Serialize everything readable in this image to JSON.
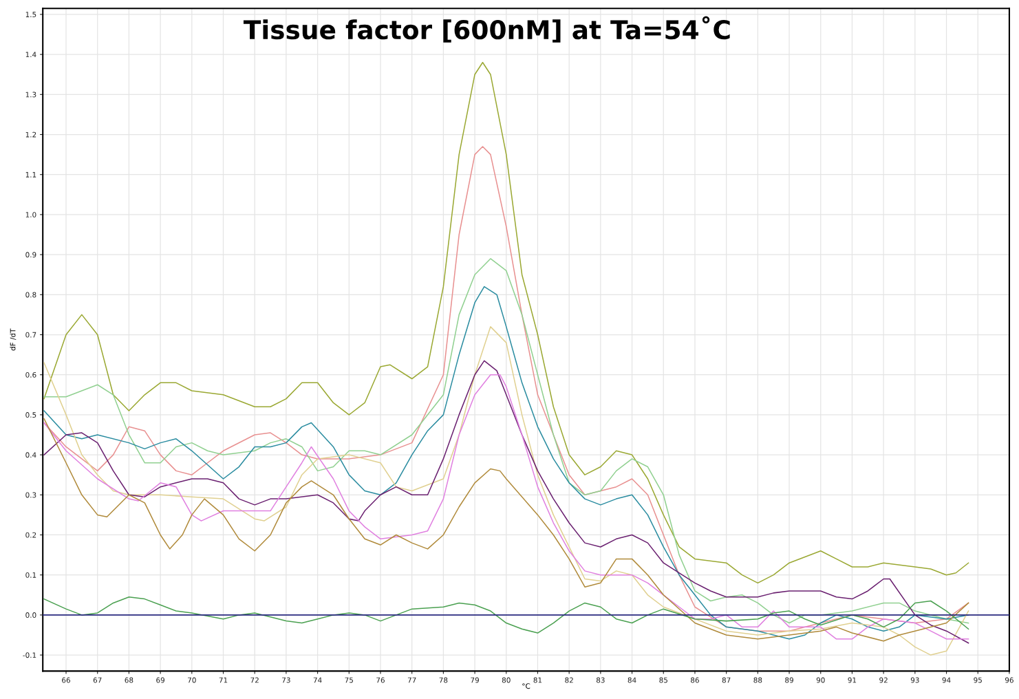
{
  "chart_data": {
    "type": "line",
    "title": "Tissue factor [600nM] at Ta=54˚C",
    "xlabel": "°C",
    "ylabel": "dF /dT",
    "xlim": [
      65.26,
      96
    ],
    "xticks": [
      66,
      67,
      68,
      69,
      70,
      71,
      72,
      73,
      74,
      75,
      76,
      77,
      78,
      79,
      80,
      81,
      82,
      83,
      84,
      85,
      86,
      87,
      88,
      89,
      90,
      91,
      92,
      93,
      94,
      95,
      96
    ],
    "ylim": [
      -0.14,
      1.515
    ],
    "yticks": [
      -0.1,
      {
        "value": 0,
        "label": "0.0"
      },
      0.1,
      0.2,
      0.3,
      0.4,
      0.5,
      0.6,
      0.7,
      0.8,
      0.9,
      {
        "value": 1,
        "label": "1.0"
      },
      1.1,
      1.2,
      1.3,
      1.4,
      1.5
    ],
    "grid": true,
    "marker": "none",
    "line_style": "solid",
    "ref_lines": [
      {
        "axis": "y",
        "value": 0,
        "color": "#2a2a80"
      }
    ],
    "series": [
      {
        "color": "#9aa832",
        "x": [
          65.3,
          66,
          66.5,
          67,
          67.5,
          68,
          68.5,
          69,
          69.5,
          70,
          71,
          72,
          72.5,
          73,
          73.5,
          74,
          74.5,
          75,
          75.5,
          76,
          76.3,
          77,
          77.5,
          78,
          78.5,
          79,
          79.25,
          79.5,
          80,
          80.5,
          81,
          81.5,
          82,
          82.5,
          83,
          83.5,
          84,
          84.5,
          85,
          85.5,
          86,
          87,
          87.5,
          88,
          88.5,
          89,
          90,
          90.5,
          91,
          91.5,
          92,
          93,
          93.5,
          94,
          94.3,
          94.7
        ],
        "values": [
          0.54,
          0.7,
          0.75,
          0.7,
          0.55,
          0.51,
          0.55,
          0.58,
          0.58,
          0.56,
          0.55,
          0.52,
          0.52,
          0.54,
          0.58,
          0.58,
          0.53,
          0.5,
          0.53,
          0.62,
          0.625,
          0.59,
          0.62,
          0.82,
          1.15,
          1.35,
          1.38,
          1.35,
          1.15,
          0.85,
          0.7,
          0.52,
          0.4,
          0.35,
          0.37,
          0.41,
          0.4,
          0.34,
          0.25,
          0.17,
          0.14,
          0.13,
          0.1,
          0.08,
          0.1,
          0.13,
          0.16,
          0.14,
          0.12,
          0.12,
          0.13,
          0.12,
          0.115,
          0.1,
          0.105,
          0.13
        ]
      },
      {
        "color": "#e89090",
        "x": [
          65.3,
          66,
          67,
          67.5,
          68,
          68.5,
          69,
          69.5,
          70,
          70.5,
          71,
          72,
          72.5,
          73,
          73.5,
          74,
          75,
          76,
          77,
          78,
          78.5,
          79,
          79.25,
          79.5,
          80,
          80.5,
          81,
          82,
          82.5,
          83,
          83.5,
          84,
          84.5,
          85,
          85.5,
          86,
          87,
          88,
          89,
          90,
          91,
          92,
          93,
          94,
          94.7
        ],
        "values": [
          0.48,
          0.42,
          0.36,
          0.4,
          0.47,
          0.46,
          0.4,
          0.36,
          0.35,
          0.38,
          0.41,
          0.45,
          0.455,
          0.43,
          0.4,
          0.39,
          0.39,
          0.4,
          0.43,
          0.6,
          0.95,
          1.15,
          1.17,
          1.15,
          0.97,
          0.75,
          0.55,
          0.35,
          0.3,
          0.31,
          0.32,
          0.34,
          0.3,
          0.2,
          0.1,
          0.02,
          -0.03,
          -0.04,
          -0.04,
          -0.02,
          0.0,
          -0.01,
          -0.02,
          -0.01,
          0.03
        ]
      },
      {
        "color": "#90d090",
        "x": [
          65.3,
          66,
          66.5,
          67,
          67.5,
          68,
          68.5,
          69,
          69.5,
          70,
          70.5,
          71,
          72,
          72.5,
          73,
          73.5,
          74,
          74.5,
          75,
          75.5,
          76,
          77,
          78,
          78.5,
          79,
          79.5,
          80,
          80.5,
          81,
          81.5,
          82,
          82.5,
          83,
          83.5,
          84,
          84.5,
          85,
          85.5,
          86,
          86.5,
          87,
          87.5,
          88,
          88.5,
          89,
          89.5,
          90,
          91,
          92,
          92.5,
          93,
          94,
          94.7
        ],
        "values": [
          0.545,
          0.545,
          0.56,
          0.575,
          0.55,
          0.45,
          0.38,
          0.38,
          0.42,
          0.43,
          0.41,
          0.4,
          0.41,
          0.43,
          0.44,
          0.42,
          0.36,
          0.37,
          0.41,
          0.41,
          0.4,
          0.45,
          0.55,
          0.75,
          0.85,
          0.89,
          0.86,
          0.75,
          0.6,
          0.45,
          0.33,
          0.3,
          0.31,
          0.36,
          0.39,
          0.37,
          0.3,
          0.15,
          0.06,
          0.035,
          0.045,
          0.05,
          0.03,
          0.0,
          -0.02,
          0.0,
          0.0,
          0.01,
          0.03,
          0.03,
          0.01,
          -0.01,
          -0.02
        ]
      },
      {
        "color": "#2a8ca0",
        "x": [
          65.3,
          66,
          66.5,
          67,
          68,
          68.5,
          69,
          69.5,
          70,
          71,
          71.5,
          72,
          72.5,
          73,
          73.5,
          73.8,
          74.5,
          75,
          75.5,
          76,
          76.5,
          77,
          77.5,
          78,
          78.5,
          79,
          79.3,
          79.7,
          80,
          80.5,
          81,
          81.5,
          82,
          82.5,
          83,
          83.5,
          84,
          84.5,
          85,
          85.5,
          86,
          86.5,
          87,
          88,
          88.5,
          89,
          89.5,
          90,
          90.5,
          91,
          91.5,
          92,
          92.5,
          93,
          94,
          94.7
        ],
        "values": [
          0.51,
          0.45,
          0.44,
          0.45,
          0.43,
          0.415,
          0.43,
          0.44,
          0.41,
          0.34,
          0.37,
          0.42,
          0.42,
          0.43,
          0.47,
          0.48,
          0.42,
          0.35,
          0.31,
          0.3,
          0.33,
          0.4,
          0.46,
          0.5,
          0.65,
          0.78,
          0.82,
          0.8,
          0.72,
          0.58,
          0.47,
          0.39,
          0.33,
          0.29,
          0.275,
          0.29,
          0.3,
          0.25,
          0.17,
          0.1,
          0.05,
          0.0,
          -0.03,
          -0.04,
          -0.05,
          -0.06,
          -0.05,
          -0.02,
          0.0,
          -0.01,
          -0.03,
          -0.04,
          -0.03,
          0.0,
          -0.01,
          0.0
        ]
      },
      {
        "color": "#e0d090",
        "x": [
          65.3,
          66,
          66.5,
          67,
          67.5,
          68,
          69,
          70,
          71,
          72,
          72.3,
          73,
          73.5,
          74,
          75,
          76,
          76.5,
          77,
          78,
          78.5,
          79,
          79.5,
          80,
          80.5,
          81,
          81.5,
          82,
          82.5,
          83,
          83.5,
          84,
          84.5,
          85,
          86,
          87,
          88,
          89,
          90,
          91,
          92,
          92.5,
          93,
          93.5,
          94,
          94.7
        ],
        "values": [
          0.63,
          0.5,
          0.4,
          0.35,
          0.31,
          0.3,
          0.3,
          0.295,
          0.29,
          0.24,
          0.235,
          0.27,
          0.35,
          0.39,
          0.4,
          0.38,
          0.32,
          0.31,
          0.34,
          0.45,
          0.6,
          0.72,
          0.68,
          0.5,
          0.35,
          0.25,
          0.17,
          0.09,
          0.085,
          0.11,
          0.1,
          0.05,
          0.02,
          -0.01,
          -0.04,
          -0.05,
          -0.04,
          -0.035,
          -0.02,
          -0.03,
          -0.05,
          -0.08,
          -0.1,
          -0.09,
          0.01
        ]
      },
      {
        "color": "#6a2070",
        "x": [
          65.3,
          66,
          66.5,
          67,
          67.5,
          68,
          68.5,
          69,
          69.5,
          70,
          70.5,
          71,
          71.5,
          72,
          72.5,
          73,
          74,
          74.5,
          75,
          75.3,
          75.5,
          76,
          76.5,
          77,
          77.5,
          78,
          78.5,
          79,
          79.3,
          79.7,
          80,
          80.5,
          81,
          81.5,
          82,
          82.5,
          83,
          83.5,
          84,
          84.5,
          85,
          86,
          86.5,
          87,
          88,
          88.5,
          89,
          90,
          90.5,
          91,
          91.5,
          92,
          92.2,
          93,
          93.5,
          94,
          94.7
        ],
        "values": [
          0.4,
          0.45,
          0.455,
          0.43,
          0.36,
          0.3,
          0.295,
          0.32,
          0.33,
          0.34,
          0.34,
          0.33,
          0.29,
          0.275,
          0.29,
          0.29,
          0.3,
          0.28,
          0.24,
          0.235,
          0.26,
          0.3,
          0.32,
          0.3,
          0.3,
          0.39,
          0.5,
          0.6,
          0.635,
          0.61,
          0.55,
          0.45,
          0.36,
          0.29,
          0.23,
          0.18,
          0.17,
          0.19,
          0.2,
          0.18,
          0.13,
          0.08,
          0.06,
          0.045,
          0.045,
          0.055,
          0.06,
          0.06,
          0.045,
          0.04,
          0.06,
          0.09,
          0.09,
          0.0,
          -0.025,
          -0.04,
          -0.07
        ]
      },
      {
        "color": "#e080e0",
        "x": [
          65.3,
          66,
          67,
          68,
          68.3,
          69,
          69.5,
          70,
          70.3,
          71,
          72,
          72.5,
          73,
          73.5,
          73.8,
          74.5,
          75,
          75.5,
          76,
          77,
          77.5,
          78,
          78.5,
          79,
          79.5,
          79.8,
          80,
          80.5,
          81,
          81.5,
          82,
          82.5,
          83,
          84,
          84.5,
          85,
          85.5,
          86,
          86.5,
          87,
          87.5,
          88,
          88.5,
          89,
          90,
          90.5,
          91,
          91.5,
          92,
          93,
          93.5,
          94,
          94.7
        ],
        "values": [
          0.48,
          0.41,
          0.34,
          0.29,
          0.285,
          0.33,
          0.32,
          0.25,
          0.235,
          0.26,
          0.26,
          0.26,
          0.32,
          0.38,
          0.42,
          0.34,
          0.26,
          0.22,
          0.19,
          0.2,
          0.21,
          0.29,
          0.45,
          0.55,
          0.6,
          0.6,
          0.57,
          0.45,
          0.32,
          0.23,
          0.16,
          0.11,
          0.1,
          0.1,
          0.08,
          0.05,
          0.02,
          -0.01,
          -0.01,
          0.0,
          -0.03,
          -0.03,
          0.01,
          -0.03,
          -0.03,
          -0.06,
          -0.06,
          -0.03,
          -0.01,
          -0.02,
          -0.04,
          -0.06,
          -0.06
        ]
      },
      {
        "color": "#b08a3a",
        "x": [
          65.3,
          66,
          66.5,
          67,
          67.3,
          68,
          68.5,
          69,
          69.3,
          69.7,
          70,
          70.4,
          71,
          71.5,
          72,
          72.5,
          73,
          73.5,
          73.8,
          74.5,
          75,
          75.5,
          76,
          76.5,
          77,
          77.5,
          78,
          78.5,
          79,
          79.5,
          79.8,
          80,
          81,
          81.5,
          82,
          82.5,
          83,
          83.5,
          84,
          84.5,
          85,
          86,
          87,
          88,
          89,
          90,
          90.5,
          91,
          92,
          92.5,
          93,
          94,
          94.7
        ],
        "values": [
          0.49,
          0.38,
          0.3,
          0.25,
          0.245,
          0.3,
          0.28,
          0.2,
          0.165,
          0.2,
          0.25,
          0.29,
          0.25,
          0.19,
          0.16,
          0.2,
          0.28,
          0.32,
          0.335,
          0.3,
          0.24,
          0.19,
          0.175,
          0.2,
          0.18,
          0.165,
          0.2,
          0.27,
          0.33,
          0.365,
          0.36,
          0.34,
          0.25,
          0.2,
          0.14,
          0.07,
          0.08,
          0.14,
          0.14,
          0.1,
          0.05,
          -0.02,
          -0.05,
          -0.06,
          -0.05,
          -0.04,
          -0.03,
          -0.045,
          -0.065,
          -0.05,
          -0.04,
          -0.02,
          0.03
        ]
      },
      {
        "color": "#4aa050",
        "x": [
          65.3,
          66,
          66.5,
          67,
          67.5,
          68,
          68.5,
          69,
          69.5,
          70,
          71,
          71.5,
          72,
          72.5,
          73,
          73.5,
          74,
          74.5,
          75,
          75.5,
          76,
          76.5,
          77,
          78,
          78.5,
          79,
          79.5,
          80,
          80.5,
          81,
          81.5,
          82,
          82.5,
          83,
          83.5,
          84,
          84.5,
          85,
          86,
          87,
          88,
          88.5,
          89,
          89.5,
          90,
          91,
          91.5,
          92,
          92.5,
          93,
          93.5,
          94,
          94.7
        ],
        "values": [
          0.04,
          0.015,
          0.0,
          0.005,
          0.03,
          0.045,
          0.04,
          0.025,
          0.01,
          0.005,
          -0.01,
          0.0,
          0.005,
          -0.005,
          -0.015,
          -0.02,
          -0.01,
          0.0,
          0.005,
          0.0,
          -0.015,
          0.0,
          0.015,
          0.02,
          0.03,
          0.025,
          0.01,
          -0.02,
          -0.035,
          -0.045,
          -0.02,
          0.01,
          0.03,
          0.02,
          -0.01,
          -0.02,
          0.0,
          0.015,
          -0.01,
          -0.015,
          -0.01,
          0.005,
          0.01,
          -0.01,
          -0.025,
          0.0,
          -0.01,
          -0.03,
          -0.01,
          0.03,
          0.035,
          0.01,
          -0.035
        ]
      }
    ]
  }
}
